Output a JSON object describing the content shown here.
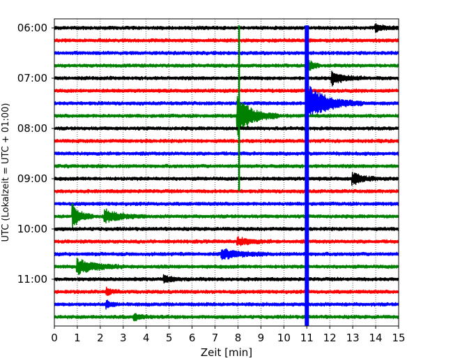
{
  "chart_data": {
    "type": "line",
    "title": "",
    "xlabel": "Zeit  [min]",
    "ylabel": "UTC (Lokalzeit = UTC + 01:00)",
    "xlim": [
      0,
      15
    ],
    "x_ticks": [
      0,
      1,
      2,
      3,
      4,
      5,
      6,
      7,
      8,
      9,
      10,
      11,
      12,
      13,
      14,
      15
    ],
    "x_tick_labels": [
      "0",
      "1",
      "2",
      "3",
      "4",
      "5",
      "6",
      "7",
      "8",
      "9",
      "10",
      "11",
      "12",
      "13",
      "14",
      "15"
    ],
    "grid": "vertical dotted",
    "legend": "none",
    "colors": [
      "#000000",
      "#ff0000",
      "#0000ff",
      "#008000"
    ],
    "y_tick_labels": [
      "06:00",
      "07:00",
      "08:00",
      "09:00",
      "10:00",
      "11:00"
    ],
    "traces": [
      {
        "start": "06:00",
        "color": "#000000",
        "events": [
          {
            "x": 14.0,
            "amp": 0.25,
            "dur": 0.4
          }
        ]
      },
      {
        "start": "06:15",
        "color": "#ff0000",
        "events": []
      },
      {
        "start": "06:30",
        "color": "#0000ff",
        "events": []
      },
      {
        "start": "06:45",
        "color": "#008000",
        "events": [
          {
            "x": 11.0,
            "amp": 0.6,
            "dur": 0.2
          }
        ]
      },
      {
        "start": "07:00",
        "color": "#000000",
        "events": [
          {
            "x": 12.1,
            "amp": 0.5,
            "dur": 0.5
          }
        ]
      },
      {
        "start": "07:15",
        "color": "#ff0000",
        "events": []
      },
      {
        "start": "07:30",
        "color": "#0000ff",
        "events": [
          {
            "x": 11.0,
            "amp": 1.5,
            "dur": 0.8
          }
        ]
      },
      {
        "start": "07:45",
        "color": "#008000",
        "events": [
          {
            "x": 8.0,
            "amp": 1.5,
            "dur": 0.6
          }
        ]
      },
      {
        "start": "08:00",
        "color": "#000000",
        "events": []
      },
      {
        "start": "08:15",
        "color": "#ff0000",
        "events": []
      },
      {
        "start": "08:30",
        "color": "#0000ff",
        "events": []
      },
      {
        "start": "08:45",
        "color": "#008000",
        "events": []
      },
      {
        "start": "09:00",
        "color": "#000000",
        "events": [
          {
            "x": 13.0,
            "amp": 0.45,
            "dur": 0.4
          }
        ]
      },
      {
        "start": "09:15",
        "color": "#ff0000",
        "events": []
      },
      {
        "start": "09:30",
        "color": "#0000ff",
        "events": []
      },
      {
        "start": "09:45",
        "color": "#008000",
        "events": [
          {
            "x": 0.8,
            "amp": 1.0,
            "dur": 0.3
          },
          {
            "x": 2.2,
            "amp": 0.5,
            "dur": 0.6
          }
        ]
      },
      {
        "start": "10:00",
        "color": "#000000",
        "events": []
      },
      {
        "start": "10:15",
        "color": "#ff0000",
        "events": [
          {
            "x": 8.0,
            "amp": 0.3,
            "dur": 0.5
          }
        ]
      },
      {
        "start": "10:30",
        "color": "#0000ff",
        "events": [
          {
            "x": 7.3,
            "amp": 0.35,
            "dur": 0.8
          }
        ]
      },
      {
        "start": "10:45",
        "color": "#008000",
        "events": [
          {
            "x": 1.0,
            "amp": 0.6,
            "dur": 0.7
          }
        ]
      },
      {
        "start": "11:00",
        "color": "#000000",
        "events": [
          {
            "x": 4.8,
            "amp": 0.25,
            "dur": 0.3
          }
        ]
      },
      {
        "start": "11:15",
        "color": "#ff0000",
        "events": [
          {
            "x": 2.3,
            "amp": 0.25,
            "dur": 0.2
          }
        ]
      },
      {
        "start": "11:30",
        "color": "#0000ff",
        "events": [
          {
            "x": 2.3,
            "amp": 0.25,
            "dur": 0.2
          }
        ]
      },
      {
        "start": "11:45",
        "color": "#008000",
        "events": [
          {
            "x": 3.5,
            "amp": 0.25,
            "dur": 0.3
          }
        ]
      }
    ],
    "vertical_events": [
      {
        "x": 8.05,
        "color": "#008000",
        "from": "06:00",
        "to": "09:15"
      },
      {
        "x": 11.0,
        "color": "#0000ff",
        "from": "06:00",
        "to": "12:00"
      }
    ]
  }
}
